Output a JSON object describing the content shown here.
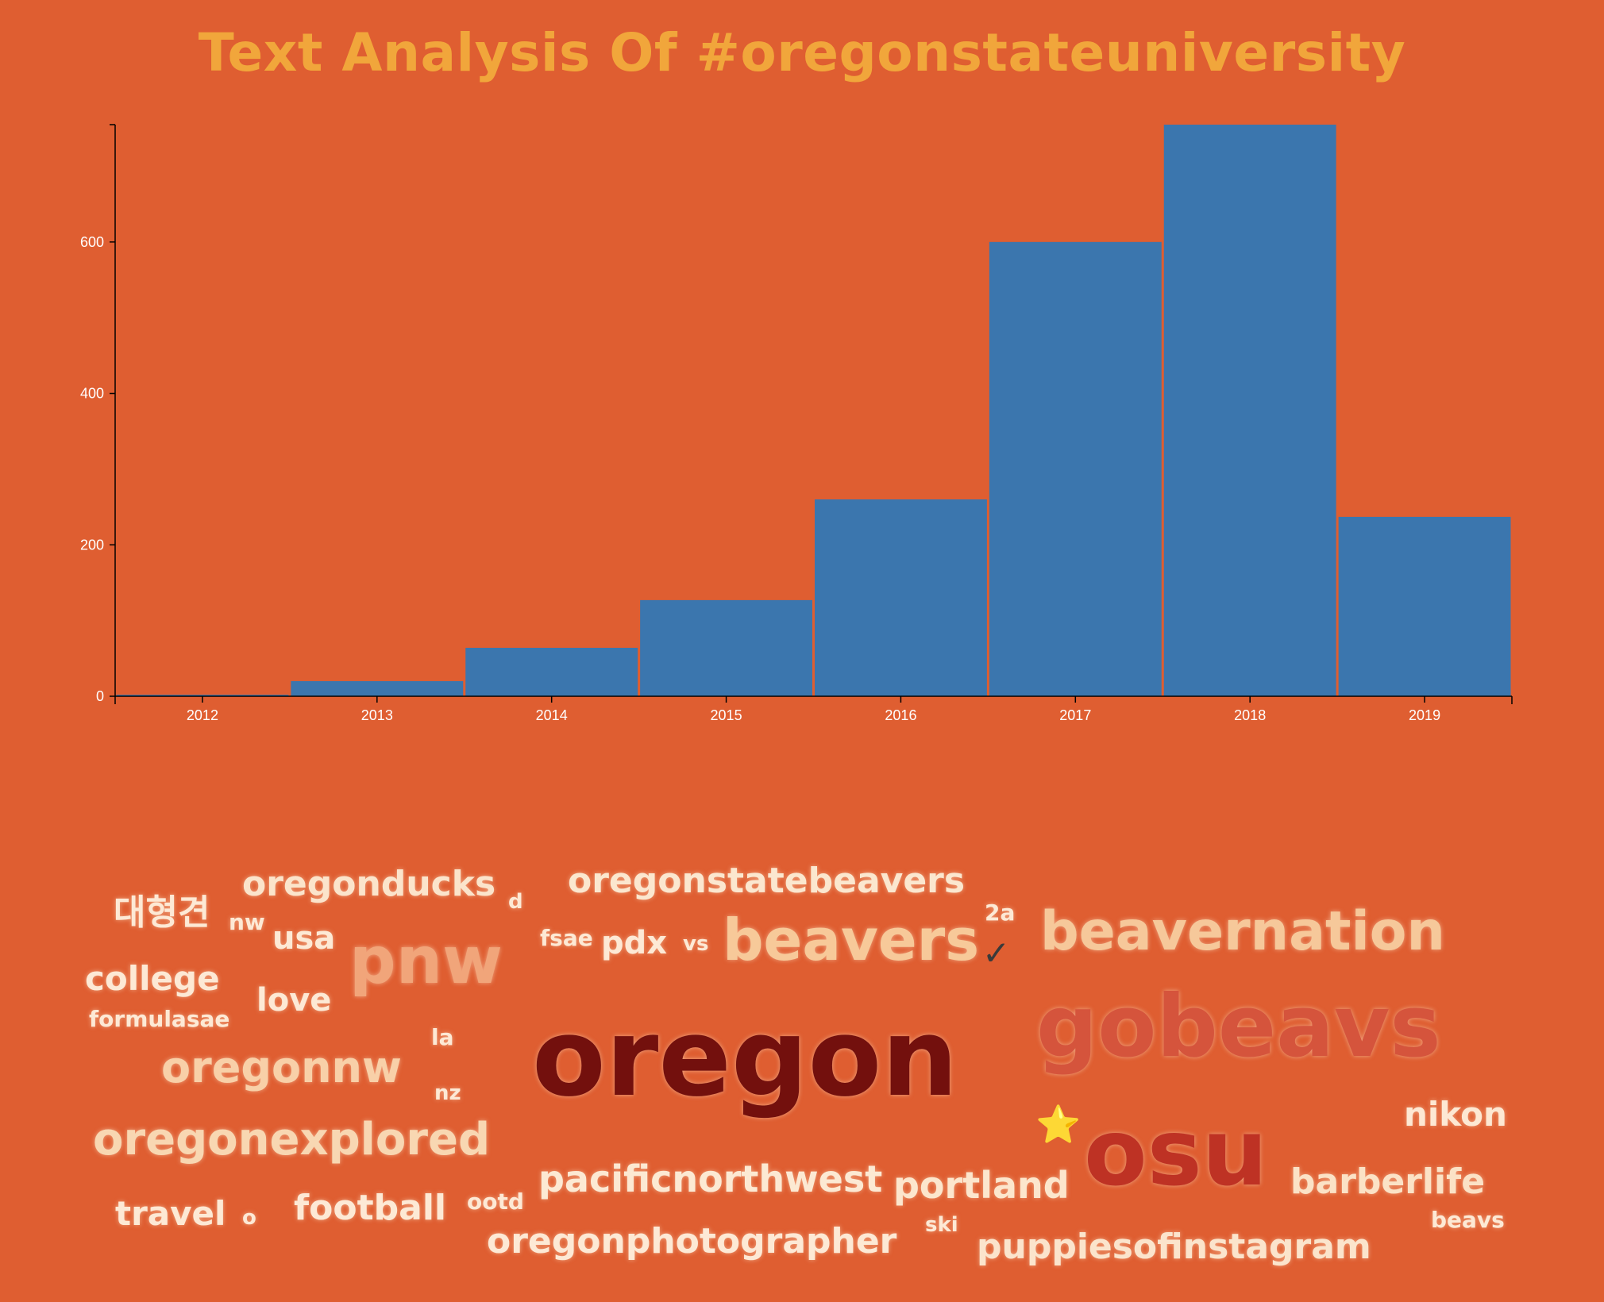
{
  "title": "Text Analysis Of #oregonstateuniversity",
  "chart_data": {
    "type": "bar",
    "categories": [
      "2012",
      "2013",
      "2014",
      "2015",
      "2016",
      "2017",
      "2018",
      "2019"
    ],
    "values": [
      2,
      20,
      64,
      127,
      260,
      600,
      755,
      237
    ],
    "y_ticks": [
      0,
      200,
      400,
      600
    ],
    "ylim": [
      0,
      755
    ],
    "bar_color": "#3b76ae",
    "axis_color": "#000000",
    "tick_label_color": "#ffffff"
  },
  "word_cloud": {
    "words": [
      {
        "text": "oregon",
        "color": "#73100d"
      },
      {
        "text": "gobeavs",
        "color": "#d5543c"
      },
      {
        "text": "osu",
        "color": "#be3224"
      },
      {
        "text": "pnw",
        "color": "#f1a57a"
      },
      {
        "text": "beavers",
        "color": "#f7c999"
      },
      {
        "text": "beavernation",
        "color": "#f6c89a"
      },
      {
        "text": "oregonstatebeavers",
        "color": "#fbe7cf"
      },
      {
        "text": "oregonducks",
        "color": "#fbe4cb"
      },
      {
        "text": "oregonexplored",
        "color": "#f8d7b2"
      },
      {
        "text": "oregonnw",
        "color": "#f8d0a8"
      },
      {
        "text": "pacificnorthwest",
        "color": "#fce9d3"
      },
      {
        "text": "portland",
        "color": "#fce6cd"
      },
      {
        "text": "barberlife",
        "color": "#fbe2c6"
      },
      {
        "text": "oregonphotographer",
        "color": "#fde9d5"
      },
      {
        "text": "puppiesofinstagram",
        "color": "#fbe4cc"
      },
      {
        "text": "nikon",
        "color": "#fde8d3"
      },
      {
        "text": "college",
        "color": "#fde9d5"
      },
      {
        "text": "love",
        "color": "#fde9d5"
      },
      {
        "text": "usa",
        "color": "#fde9d5"
      },
      {
        "text": "pdx",
        "color": "#fde9d5"
      },
      {
        "text": "fsae",
        "color": "#fde9d5"
      },
      {
        "text": "vs",
        "color": "#fde9d5"
      },
      {
        "text": "football",
        "color": "#fde9d5"
      },
      {
        "text": "travel",
        "color": "#fde9d5"
      },
      {
        "text": "formulasae",
        "color": "#fde9d5"
      },
      {
        "text": "대형견",
        "color": "#fde9d5"
      },
      {
        "text": "nw",
        "color": "#fde9d5"
      },
      {
        "text": "d",
        "color": "#fde9d5"
      },
      {
        "text": "2a",
        "color": "#fde9d5"
      },
      {
        "text": "la",
        "color": "#fde9d5"
      },
      {
        "text": "nz",
        "color": "#fde9d5"
      },
      {
        "text": "o",
        "color": "#fde9d5"
      },
      {
        "text": "ootd",
        "color": "#fde9d5"
      },
      {
        "text": "ski",
        "color": "#fde9d5"
      },
      {
        "text": "beavs",
        "color": "#fde9d5"
      },
      {
        "text": "✓",
        "color": "#3a3a3a"
      },
      {
        "text": "⭐",
        "color": "#f7d23a"
      }
    ]
  }
}
